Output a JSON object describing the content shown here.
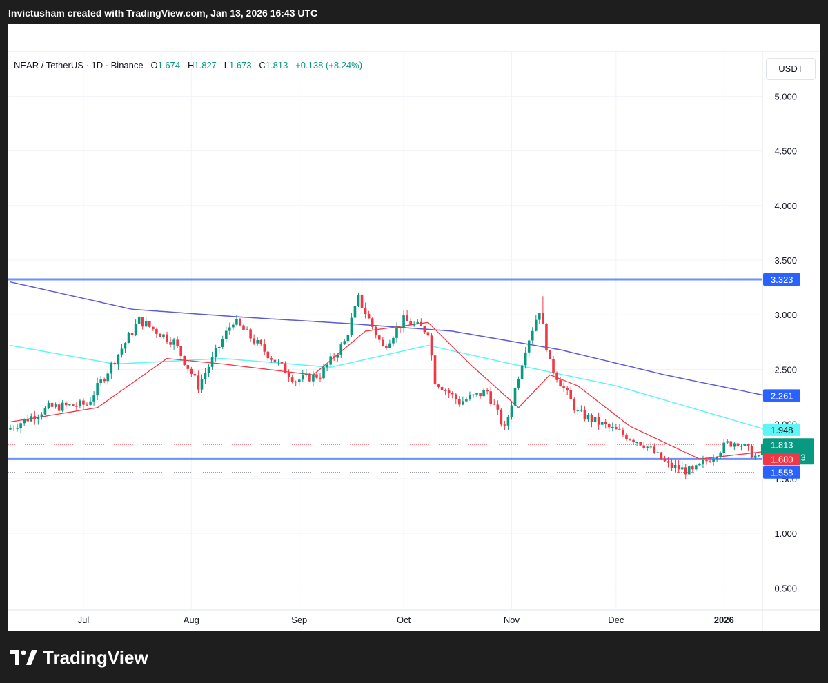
{
  "header": {
    "created_text": "Invictusham created with TradingView.com, Jan 13, 2026 16:43 UTC"
  },
  "legend": {
    "symbol": "NEAR / TetherUS · 1D · Binance",
    "open_label": "O",
    "open": "1.674",
    "high_label": "H",
    "high": "1.827",
    "low_label": "L",
    "low": "1.673",
    "close_label": "C",
    "close": "1.813",
    "change": "+0.138 (+8.24%)"
  },
  "currency_button": "USDT",
  "footer": {
    "brand": "TradingView",
    "logo_icon": "tradingview-logo-icon"
  },
  "colors": {
    "up": "#089981",
    "down": "#f23645",
    "ema_fast": "#f23645",
    "ma_mid": "#5ef5f5",
    "ma_slow": "#5b5bd6",
    "level": "#2962ff"
  },
  "chart_data": {
    "type": "candlestick",
    "y_axis": {
      "ticks": [
        "5.000",
        "4.500",
        "4.000",
        "3.500",
        "3.000",
        "2.500",
        "2.000",
        "1.500",
        "1.000",
        "0.500"
      ],
      "range": [
        0.3,
        5.4
      ]
    },
    "x_axis": {
      "tick_labels": [
        "Jul",
        "Aug",
        "Sep",
        "Oct",
        "Nov",
        "Dec",
        "2026"
      ]
    },
    "price_labels": [
      {
        "text": "3.323",
        "value": 3.323,
        "bg": "#2962ff",
        "fg": "#ffffff"
      },
      {
        "text": "2.261",
        "value": 2.261,
        "bg": "#2962ff",
        "fg": "#ffffff"
      },
      {
        "text": "1.948",
        "value": 1.948,
        "bg": "#5ef5f5",
        "fg": "#131722"
      },
      {
        "text": "1.813",
        "sub": "07:16:43",
        "value": 1.813,
        "bg": "#089981",
        "fg": "#ffffff"
      },
      {
        "text": "1.680",
        "value": 1.68,
        "bg": "#f23645",
        "fg": "#ffffff"
      },
      {
        "text": "1.558",
        "value": 1.558,
        "bg": "#2962ff",
        "fg": "#ffffff"
      }
    ],
    "horizontal_levels": [
      3.323,
      1.68
    ],
    "current_price": 1.813,
    "anchors": [
      [
        "2025-06-10",
        1.95
      ],
      [
        "2025-06-22",
        2.15
      ],
      [
        "2025-07-03",
        2.18
      ],
      [
        "2025-07-18",
        2.95
      ],
      [
        "2025-07-28",
        2.75
      ],
      [
        "2025-08-04",
        2.35
      ],
      [
        "2025-08-14",
        2.95
      ],
      [
        "2025-08-22",
        2.7
      ],
      [
        "2025-09-01",
        2.4
      ],
      [
        "2025-09-08",
        2.45
      ],
      [
        "2025-09-15",
        2.75
      ],
      [
        "2025-09-19",
        3.15
      ],
      [
        "2025-09-26",
        2.7
      ],
      [
        "2025-10-02",
        2.95
      ],
      [
        "2025-10-09",
        2.85
      ],
      [
        "2025-10-11",
        2.4
      ],
      [
        "2025-10-18",
        2.2
      ],
      [
        "2025-10-26",
        2.3
      ],
      [
        "2025-10-31",
        1.95
      ],
      [
        "2025-11-06",
        2.7
      ],
      [
        "2025-11-10",
        3.05
      ],
      [
        "2025-11-13",
        2.55
      ],
      [
        "2025-11-21",
        2.1
      ],
      [
        "2025-12-01",
        1.95
      ],
      [
        "2025-12-10",
        1.82
      ],
      [
        "2025-12-17",
        1.62
      ],
      [
        "2025-12-24",
        1.56
      ],
      [
        "2026-01-03",
        1.82
      ],
      [
        "2026-01-06",
        1.84
      ],
      [
        "2026-01-12",
        1.675
      ],
      [
        "2026-01-13",
        1.813
      ]
    ],
    "ema_fast": [
      [
        "2025-06-10",
        2.02
      ],
      [
        "2025-07-05",
        2.15
      ],
      [
        "2025-07-25",
        2.6
      ],
      [
        "2025-08-10",
        2.55
      ],
      [
        "2025-09-05",
        2.45
      ],
      [
        "2025-09-20",
        2.85
      ],
      [
        "2025-10-08",
        2.93
      ],
      [
        "2025-10-20",
        2.55
      ],
      [
        "2025-11-03",
        2.15
      ],
      [
        "2025-11-12",
        2.45
      ],
      [
        "2025-11-20",
        2.35
      ],
      [
        "2025-12-05",
        1.98
      ],
      [
        "2025-12-25",
        1.68
      ],
      [
        "2026-01-13",
        1.75
      ]
    ],
    "ma_mid": [
      [
        "2025-06-10",
        2.72
      ],
      [
        "2025-07-10",
        2.55
      ],
      [
        "2025-08-10",
        2.6
      ],
      [
        "2025-09-10",
        2.52
      ],
      [
        "2025-10-08",
        2.72
      ],
      [
        "2025-11-01",
        2.55
      ],
      [
        "2025-12-01",
        2.35
      ],
      [
        "2026-01-13",
        1.95
      ]
    ],
    "ma_slow": [
      [
        "2025-06-10",
        3.3
      ],
      [
        "2025-07-15",
        3.05
      ],
      [
        "2025-08-15",
        2.98
      ],
      [
        "2025-09-15",
        2.92
      ],
      [
        "2025-10-15",
        2.85
      ],
      [
        "2025-11-15",
        2.68
      ],
      [
        "2025-12-15",
        2.45
      ],
      [
        "2026-01-13",
        2.26
      ]
    ]
  }
}
